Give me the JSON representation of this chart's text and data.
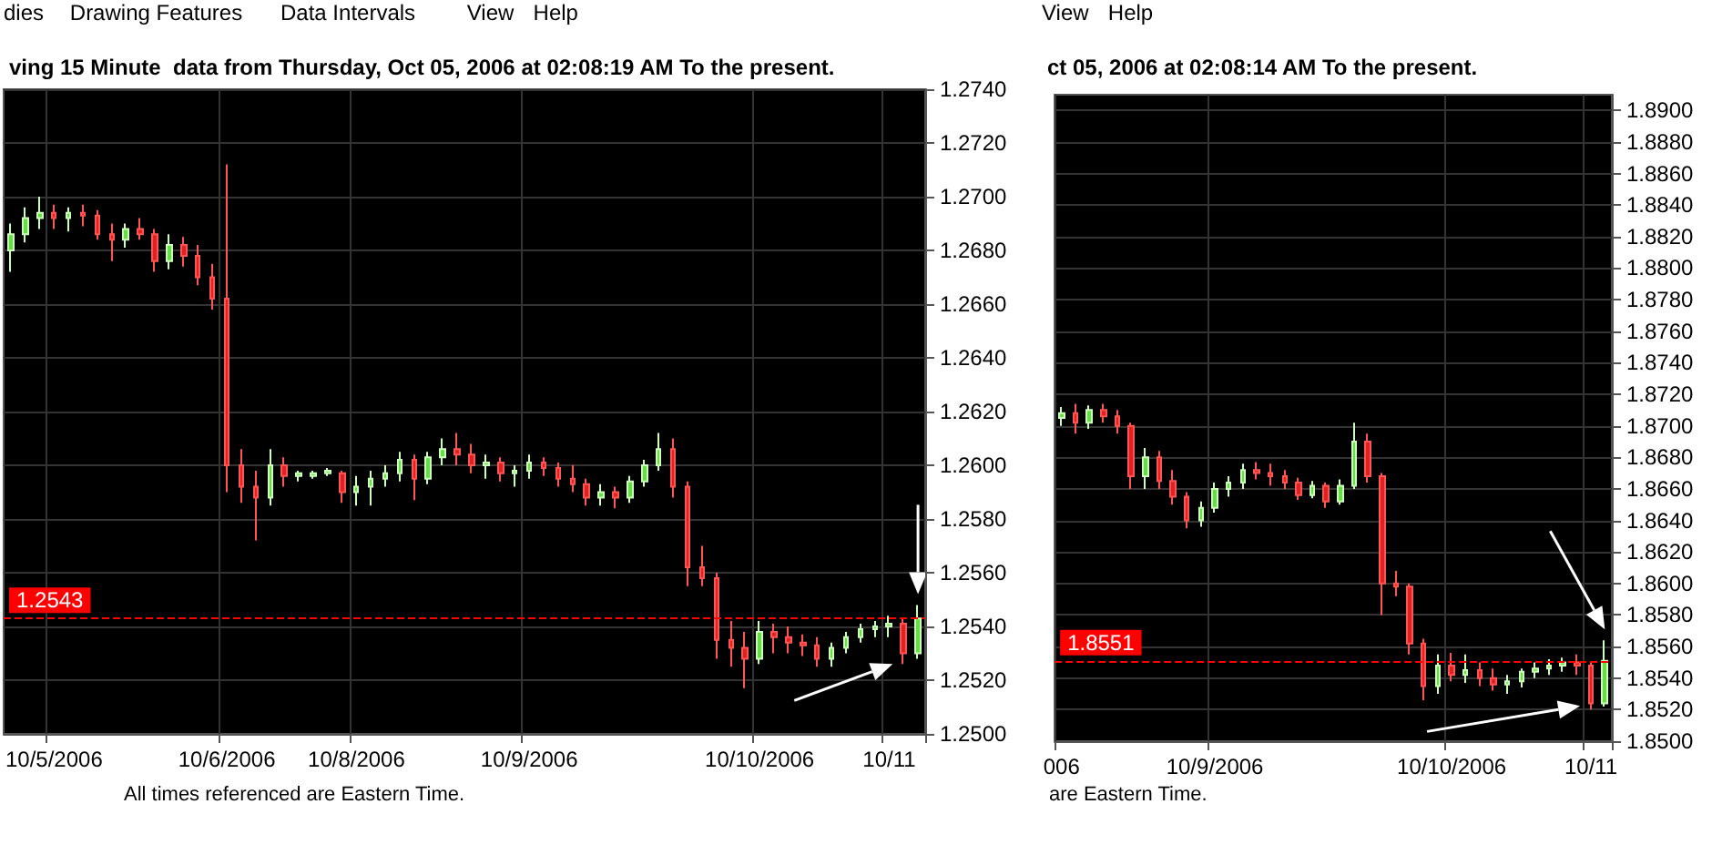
{
  "chart_data": [
    {
      "type": "candlestick",
      "title": "ving 15 Minute  data from Thursday, Oct 05, 2006 at 02:08:19 AM To the present.",
      "annotations": [
        "dies",
        "Drawing Features",
        "Data Intervals",
        "View",
        "Help",
        "All times referenced are Eastern Time."
      ],
      "categories": [
        null,
        null,
        null,
        "10/5/2006",
        null,
        null,
        null,
        null,
        null,
        null,
        null,
        null,
        null,
        null,
        null,
        "10/6/2006",
        null,
        null,
        null,
        null,
        null,
        null,
        null,
        null,
        "10/8/2006",
        null,
        null,
        null,
        null,
        null,
        null,
        null,
        null,
        null,
        null,
        null,
        "10/9/2006",
        null,
        null,
        null,
        null,
        null,
        null,
        null,
        null,
        null,
        null,
        null,
        null,
        null,
        null,
        null,
        "10/10/2006",
        null,
        null,
        null,
        null,
        null,
        null,
        null,
        null,
        "10/11",
        null,
        null
      ],
      "ohlc": [
        [
          1.268,
          1.269,
          1.2672,
          1.2686
        ],
        [
          1.2686,
          1.2696,
          1.2683,
          1.2692
        ],
        [
          1.2692,
          1.27,
          1.2688,
          1.2694
        ],
        [
          1.2694,
          1.2697,
          1.2688,
          1.2692
        ],
        [
          1.2692,
          1.2696,
          1.2687,
          1.2694
        ],
        [
          1.2694,
          1.2697,
          1.2689,
          1.2693
        ],
        [
          1.2693,
          1.2695,
          1.2684,
          1.2686
        ],
        [
          1.2686,
          1.269,
          1.2676,
          1.2684
        ],
        [
          1.2684,
          1.269,
          1.2681,
          1.2688
        ],
        [
          1.2688,
          1.2692,
          1.2684,
          1.2686
        ],
        [
          1.2686,
          1.2688,
          1.2672,
          1.2676
        ],
        [
          1.2676,
          1.2686,
          1.2673,
          1.2682
        ],
        [
          1.2682,
          1.2685,
          1.2674,
          1.2678
        ],
        [
          1.2678,
          1.2682,
          1.2667,
          1.267
        ],
        [
          1.267,
          1.2675,
          1.2658,
          1.2662
        ],
        [
          1.2662,
          1.2712,
          1.259,
          1.26
        ],
        [
          1.26,
          1.2606,
          1.2586,
          1.2592
        ],
        [
          1.2592,
          1.2598,
          1.2572,
          1.2588
        ],
        [
          1.2588,
          1.2606,
          1.2585,
          1.26
        ],
        [
          1.26,
          1.2603,
          1.2592,
          1.2596
        ],
        [
          1.2596,
          1.2598,
          1.2594,
          1.2597
        ],
        [
          1.2596,
          1.2598,
          1.2595,
          1.2597
        ],
        [
          1.2597,
          1.2599,
          1.2596,
          1.2598
        ],
        [
          1.2597,
          1.2598,
          1.2586,
          1.259
        ],
        [
          1.259,
          1.2596,
          1.2585,
          1.2592
        ],
        [
          1.2592,
          1.2598,
          1.2585,
          1.2595
        ],
        [
          1.2595,
          1.26,
          1.2592,
          1.2597
        ],
        [
          1.2597,
          1.2605,
          1.2594,
          1.2602
        ],
        [
          1.2602,
          1.2604,
          1.2587,
          1.2595
        ],
        [
          1.2595,
          1.2605,
          1.2593,
          1.2603
        ],
        [
          1.2603,
          1.261,
          1.26,
          1.2606
        ],
        [
          1.2606,
          1.2612,
          1.26,
          1.2604
        ],
        [
          1.2604,
          1.2608,
          1.2597,
          1.26
        ],
        [
          1.26,
          1.2604,
          1.2595,
          1.2601
        ],
        [
          1.2601,
          1.2603,
          1.2594,
          1.2597
        ],
        [
          1.2597,
          1.26,
          1.2592,
          1.2598
        ],
        [
          1.2598,
          1.2604,
          1.2595,
          1.2601
        ],
        [
          1.2601,
          1.2603,
          1.2596,
          1.2599
        ],
        [
          1.2599,
          1.2601,
          1.2592,
          1.2595
        ],
        [
          1.2595,
          1.26,
          1.259,
          1.2593
        ],
        [
          1.2593,
          1.2595,
          1.2585,
          1.2588
        ],
        [
          1.2588,
          1.2593,
          1.2585,
          1.259
        ],
        [
          1.259,
          1.2592,
          1.2584,
          1.2588
        ],
        [
          1.2588,
          1.2596,
          1.2586,
          1.2594
        ],
        [
          1.2594,
          1.2602,
          1.2592,
          1.26
        ],
        [
          1.26,
          1.2612,
          1.2598,
          1.2606
        ],
        [
          1.2606,
          1.261,
          1.2588,
          1.2592
        ],
        [
          1.2592,
          1.2594,
          1.2555,
          1.2562
        ],
        [
          1.2562,
          1.257,
          1.2555,
          1.2558
        ],
        [
          1.2558,
          1.256,
          1.2528,
          1.2535
        ],
        [
          1.2535,
          1.2542,
          1.2525,
          1.2532
        ],
        [
          1.2532,
          1.2538,
          1.2517,
          1.2528
        ],
        [
          1.2528,
          1.2542,
          1.2526,
          1.2538
        ],
        [
          1.2538,
          1.2541,
          1.253,
          1.2536
        ],
        [
          1.2536,
          1.254,
          1.253,
          1.2534
        ],
        [
          1.2534,
          1.2537,
          1.2529,
          1.2533
        ],
        [
          1.2533,
          1.2536,
          1.2525,
          1.2528
        ],
        [
          1.2528,
          1.2534,
          1.2525,
          1.2532
        ],
        [
          1.2532,
          1.2538,
          1.253,
          1.2536
        ],
        [
          1.2536,
          1.2541,
          1.2534,
          1.2539
        ],
        [
          1.2539,
          1.2542,
          1.2536,
          1.254
        ],
        [
          1.254,
          1.2544,
          1.2536,
          1.2541
        ],
        [
          1.2541,
          1.2543,
          1.2526,
          1.253
        ],
        [
          1.253,
          1.2548,
          1.2528,
          1.2543
        ]
      ],
      "ylim": [
        1.25,
        1.274
      ],
      "yticks": [
        {
          "value": 1.25,
          "label": "1.2500"
        },
        {
          "value": 1.252,
          "label": "1.2520"
        },
        {
          "value": 1.254,
          "label": "1.2540"
        },
        {
          "value": 1.256,
          "label": "1.2560"
        },
        {
          "value": 1.258,
          "label": "1.2580"
        },
        {
          "value": 1.26,
          "label": "1.2600"
        },
        {
          "value": 1.262,
          "label": "1.2620"
        },
        {
          "value": 1.264,
          "label": "1.2640"
        },
        {
          "value": 1.266,
          "label": "1.2660"
        },
        {
          "value": 1.268,
          "label": "1.2680"
        },
        {
          "value": 1.27,
          "label": "1.2700"
        },
        {
          "value": 1.272,
          "label": "1.2720"
        },
        {
          "value": 1.274,
          "label": "1.2740"
        }
      ],
      "ref_lines": [
        {
          "axis": "y",
          "value": 1.2543,
          "label": "1.2543",
          "color": "#ff0000",
          "line_style": "dashed"
        }
      ],
      "grid": true
    },
    {
      "type": "candlestick",
      "title": "ct 05, 2006 at 02:08:14 AM To the present.",
      "annotations": [
        "View",
        "Help",
        "are Eastern Time."
      ],
      "categories": [
        "006",
        null,
        null,
        null,
        null,
        null,
        null,
        null,
        null,
        null,
        null,
        "10/9/2006",
        null,
        null,
        null,
        null,
        null,
        null,
        null,
        null,
        null,
        null,
        null,
        null,
        null,
        null,
        null,
        null,
        "10/10/2006",
        null,
        null,
        null,
        null,
        null,
        null,
        null,
        null,
        null,
        "10/11",
        null
      ],
      "ohlc": [
        [
          1.8705,
          1.8712,
          1.87,
          1.8708
        ],
        [
          1.8708,
          1.8714,
          1.8695,
          1.8702
        ],
        [
          1.8702,
          1.8713,
          1.8698,
          1.871
        ],
        [
          1.871,
          1.8714,
          1.8702,
          1.8706
        ],
        [
          1.8706,
          1.871,
          1.8695,
          1.87
        ],
        [
          1.87,
          1.8702,
          1.866,
          1.8668
        ],
        [
          1.8668,
          1.8686,
          1.866,
          1.868
        ],
        [
          1.868,
          1.8684,
          1.866,
          1.8665
        ],
        [
          1.8665,
          1.8672,
          1.865,
          1.8655
        ],
        [
          1.8655,
          1.8658,
          1.8635,
          1.864
        ],
        [
          1.864,
          1.8652,
          1.8636,
          1.8648
        ],
        [
          1.8648,
          1.8664,
          1.8645,
          1.866
        ],
        [
          1.866,
          1.8668,
          1.8655,
          1.8664
        ],
        [
          1.8664,
          1.8676,
          1.866,
          1.8672
        ],
        [
          1.8672,
          1.8677,
          1.8666,
          1.867
        ],
        [
          1.867,
          1.8676,
          1.8662,
          1.8668
        ],
        [
          1.8668,
          1.8672,
          1.866,
          1.8664
        ],
        [
          1.8664,
          1.8667,
          1.8653,
          1.8656
        ],
        [
          1.8656,
          1.8665,
          1.8654,
          1.8662
        ],
        [
          1.8662,
          1.8664,
          1.8648,
          1.8652
        ],
        [
          1.8652,
          1.8666,
          1.865,
          1.8662
        ],
        [
          1.8662,
          1.8702,
          1.866,
          1.869
        ],
        [
          1.869,
          1.8695,
          1.8664,
          1.8668
        ],
        [
          1.8668,
          1.867,
          1.858,
          1.86
        ],
        [
          1.86,
          1.8608,
          1.8592,
          1.8598
        ],
        [
          1.8598,
          1.86,
          1.8555,
          1.8562
        ],
        [
          1.8562,
          1.8565,
          1.8526,
          1.8535
        ],
        [
          1.8535,
          1.8555,
          1.853,
          1.8548
        ],
        [
          1.8548,
          1.8556,
          1.8538,
          1.8542
        ],
        [
          1.8542,
          1.8555,
          1.8537,
          1.8545
        ],
        [
          1.8545,
          1.855,
          1.8535,
          1.854
        ],
        [
          1.854,
          1.8546,
          1.8532,
          1.8536
        ],
        [
          1.8536,
          1.8542,
          1.853,
          1.8538
        ],
        [
          1.8538,
          1.8546,
          1.8534,
          1.8544
        ],
        [
          1.8544,
          1.855,
          1.854,
          1.8546
        ],
        [
          1.8546,
          1.8552,
          1.8542,
          1.8548
        ],
        [
          1.8548,
          1.8553,
          1.8544,
          1.855
        ],
        [
          1.855,
          1.8555,
          1.8542,
          1.8548
        ],
        [
          1.8548,
          1.855,
          1.852,
          1.8524
        ],
        [
          1.8524,
          1.8564,
          1.8522,
          1.8551
        ]
      ],
      "ylim": [
        1.85,
        1.891
      ],
      "yticks": [
        {
          "value": 1.85,
          "label": "1.8500"
        },
        {
          "value": 1.852,
          "label": "1.8520"
        },
        {
          "value": 1.854,
          "label": "1.8540"
        },
        {
          "value": 1.856,
          "label": "1.8560"
        },
        {
          "value": 1.858,
          "label": "1.8580"
        },
        {
          "value": 1.86,
          "label": "1.8600"
        },
        {
          "value": 1.862,
          "label": "1.8620"
        },
        {
          "value": 1.864,
          "label": "1.8640"
        },
        {
          "value": 1.866,
          "label": "1.8660"
        },
        {
          "value": 1.868,
          "label": "1.8680"
        },
        {
          "value": 1.87,
          "label": "1.8700"
        },
        {
          "value": 1.872,
          "label": "1.8720"
        },
        {
          "value": 1.874,
          "label": "1.8740"
        },
        {
          "value": 1.876,
          "label": "1.8760"
        },
        {
          "value": 1.878,
          "label": "1.8780"
        },
        {
          "value": 1.88,
          "label": "1.8800"
        },
        {
          "value": 1.882,
          "label": "1.8820"
        },
        {
          "value": 1.884,
          "label": "1.8840"
        },
        {
          "value": 1.886,
          "label": "1.8860"
        },
        {
          "value": 1.888,
          "label": "1.8880"
        },
        {
          "value": 1.89,
          "label": "1.8900"
        }
      ],
      "ref_lines": [
        {
          "axis": "y",
          "value": 1.8551,
          "label": "1.8551",
          "color": "#ff0000",
          "line_style": "dashed"
        }
      ],
      "grid": true
    }
  ]
}
